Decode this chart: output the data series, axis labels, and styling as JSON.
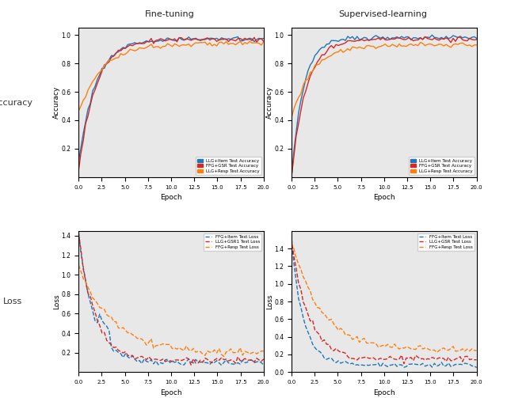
{
  "col_titles": [
    "Fine-tuning",
    "Supervised-learning"
  ],
  "row_labels": [
    "Accuracy",
    "Loss"
  ],
  "acc_xlabel": "Epoch",
  "acc_ylabel": "Accuracy",
  "loss_xlabel": "Epoch",
  "loss_ylabel": "Loss",
  "acc_legend": [
    "LLG+Item Test Accuracy",
    "FFG+GSR Test Accuracy",
    "LLG+Resp Test Accuracy"
  ],
  "loss_legend_ft": [
    "FFG+Item Test Loss",
    "LLG+GSR1 Test Loss",
    "FFG+Resp Test Loss"
  ],
  "loss_legend_sl": [
    "FFG+Item Test Loss",
    "LLG+GSR Test Loss",
    "FFG+Resp Test Loss"
  ],
  "colors": [
    "#1f77b4",
    "#d62728",
    "#ff7f0e"
  ],
  "epoch_max": 20,
  "acc_ylim_ft": [
    0.0,
    1.05
  ],
  "acc_ylim_sl": [
    0.0,
    1.05
  ],
  "loss_ft_ylim": [
    0.0,
    1.45
  ],
  "loss_sl_ylim": [
    0.0,
    1.6
  ],
  "bg_color": "#e8e8e8",
  "fig_bg": "#ffffff"
}
